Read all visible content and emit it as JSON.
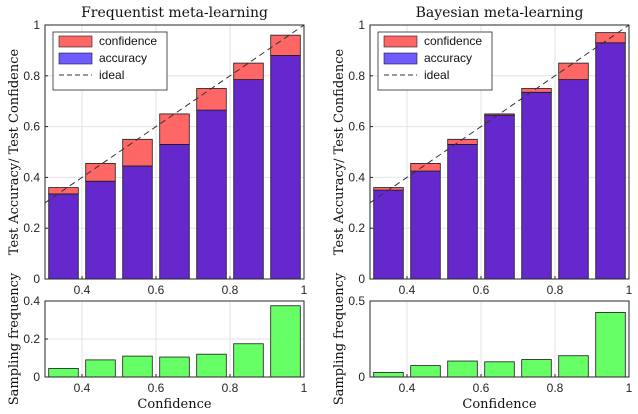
{
  "colors": {
    "confidence": "#ff6666",
    "accuracy": "#6f5cff",
    "overlap": "#6528cc",
    "frequency": "#66ff66",
    "ideal": "#333333",
    "grid": "#e3e3e3",
    "axis": "#262626"
  },
  "chart_data": [
    {
      "id": "freq-top",
      "type": "bar",
      "title": "Frequentist meta-learning",
      "xlabel": "",
      "ylabel": "Test Accuracy/ Test Confidence",
      "xlim": [
        0.3,
        1.0
      ],
      "ylim": [
        0,
        1.0
      ],
      "xticks": [
        0.4,
        0.6,
        0.8,
        1
      ],
      "yticks": [
        0,
        0.2,
        0.4,
        0.6,
        0.8,
        1
      ],
      "grid": true,
      "legend": "top-left",
      "bar_centers": [
        0.35,
        0.45,
        0.55,
        0.65,
        0.75,
        0.85,
        0.95
      ],
      "bar_width": 0.08,
      "series": [
        {
          "name": "confidence",
          "values": [
            0.36,
            0.455,
            0.55,
            0.65,
            0.75,
            0.85,
            0.96
          ]
        },
        {
          "name": "accuracy",
          "values": [
            0.335,
            0.385,
            0.445,
            0.53,
            0.665,
            0.785,
            0.88
          ]
        },
        {
          "name": "ideal",
          "line": [
            [
              0.3,
              0.3
            ],
            [
              1.0,
              1.0
            ]
          ]
        }
      ]
    },
    {
      "id": "freq-bottom",
      "type": "bar",
      "title": "",
      "xlabel": "Confidence",
      "ylabel": "Sampling frequency",
      "xlim": [
        0.3,
        1.0
      ],
      "ylim": [
        0,
        0.4
      ],
      "xticks": [
        0.4,
        0.6,
        0.8,
        1
      ],
      "yticks": [
        0,
        0.2,
        0.4
      ],
      "grid": true,
      "bar_centers": [
        0.35,
        0.45,
        0.55,
        0.65,
        0.75,
        0.85,
        0.95
      ],
      "bar_width": 0.08,
      "values": [
        0.045,
        0.09,
        0.11,
        0.105,
        0.12,
        0.175,
        0.375
      ]
    },
    {
      "id": "bayes-top",
      "type": "bar",
      "title": "Bayesian meta-learning",
      "xlabel": "",
      "ylabel": "Test Accuracy/ Test Confidence",
      "xlim": [
        0.3,
        1.0
      ],
      "ylim": [
        0,
        1.0
      ],
      "xticks": [
        0.4,
        0.6,
        0.8,
        1
      ],
      "yticks": [
        0,
        0.2,
        0.4,
        0.6,
        0.8,
        1
      ],
      "grid": true,
      "legend": "top-left",
      "bar_centers": [
        0.35,
        0.45,
        0.55,
        0.65,
        0.75,
        0.85,
        0.95
      ],
      "bar_width": 0.08,
      "series": [
        {
          "name": "confidence",
          "values": [
            0.36,
            0.455,
            0.55,
            0.65,
            0.75,
            0.85,
            0.97
          ]
        },
        {
          "name": "accuracy",
          "values": [
            0.35,
            0.425,
            0.53,
            0.645,
            0.735,
            0.785,
            0.93
          ]
        },
        {
          "name": "ideal",
          "line": [
            [
              0.3,
              0.3
            ],
            [
              1.0,
              1.0
            ]
          ]
        }
      ]
    },
    {
      "id": "bayes-bottom",
      "type": "bar",
      "title": "",
      "xlabel": "Confidence",
      "ylabel": "Sampling frequency",
      "xlim": [
        0.3,
        1.0
      ],
      "ylim": [
        0,
        0.5
      ],
      "xticks": [
        0.4,
        0.6,
        0.8,
        1
      ],
      "yticks": [
        0,
        0.5
      ],
      "grid": true,
      "bar_centers": [
        0.35,
        0.45,
        0.55,
        0.65,
        0.75,
        0.85,
        0.95
      ],
      "bar_width": 0.08,
      "values": [
        0.03,
        0.075,
        0.105,
        0.1,
        0.115,
        0.14,
        0.425
      ]
    }
  ]
}
